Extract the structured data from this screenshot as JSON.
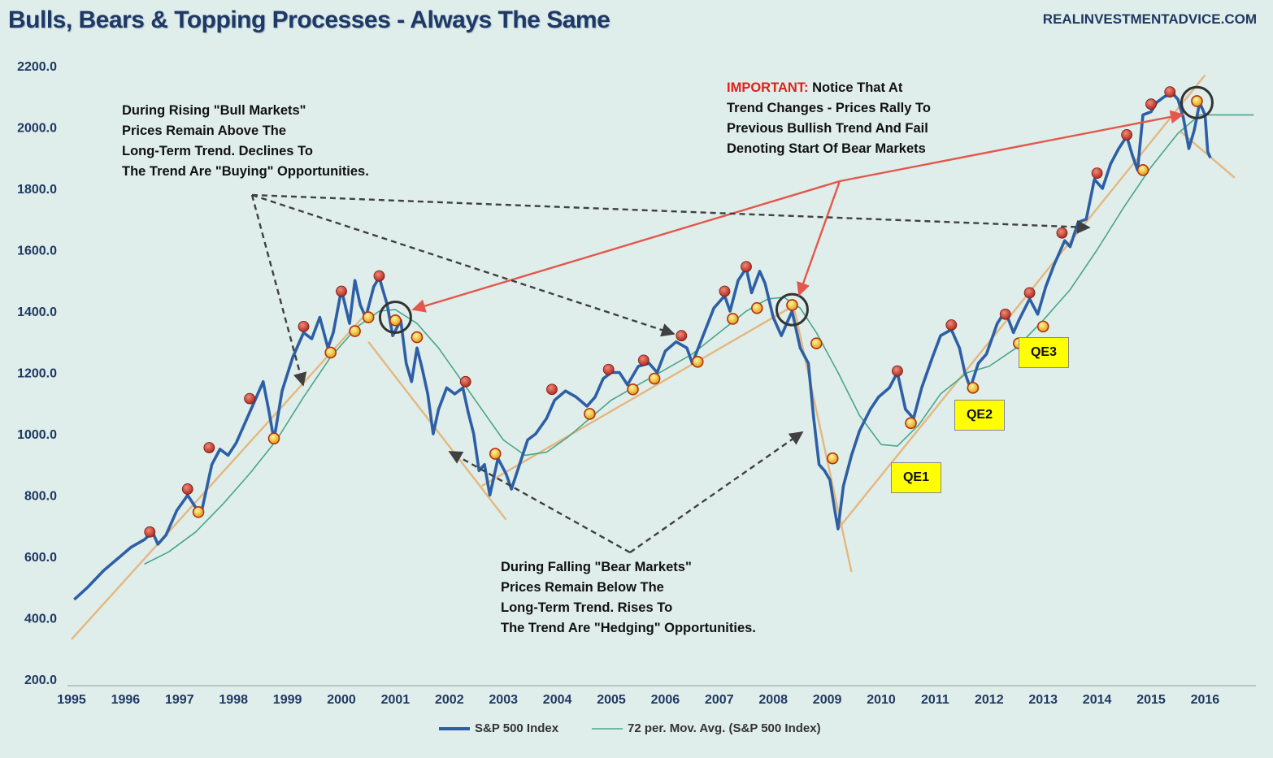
{
  "header": {
    "title": "Bulls, Bears & Topping Processes - Always The Same",
    "source": "REALINVESTMENTADVICE.COM"
  },
  "colors": {
    "price": "#2e5fa6",
    "moving_avg": "#4aa58a",
    "trendline": "#e4b780",
    "red_arrow": "#e4574c",
    "dashed_arrow": "#404040",
    "peak_marker": "#c0392b",
    "pullback_marker": "#f2c019",
    "qe_box": "#ffff00"
  },
  "annotations": {
    "bull_note": [
      "During Rising \"Bull Markets\"",
      "Prices Remain Above The",
      "Long-Term Trend. Declines To",
      "The Trend Are \"Buying\" Opportunities."
    ],
    "bear_note": [
      "During Falling \"Bear Markets\"",
      "Prices Remain Below The",
      "Long-Term Trend. Rises To",
      "The Trend Are \"Hedging\" Opportunities."
    ],
    "important_label": "IMPORTANT:",
    "important_note": [
      " Notice That At",
      "Trend Changes - Prices Rally To",
      "Previous Bullish Trend And Fail",
      "Denoting Start Of Bear Markets"
    ],
    "qe_labels": [
      "QE1",
      "QE2",
      "QE3"
    ]
  },
  "chart_data": {
    "type": "line",
    "title": "Bulls, Bears & Topping Processes - Always The Same",
    "xlabel": "",
    "ylabel": "",
    "xlim": [
      1995,
      2016.95
    ],
    "ylim": [
      200,
      2200
    ],
    "x_ticks": [
      "1995",
      "1996",
      "1997",
      "1998",
      "1999",
      "2000",
      "2001",
      "2002",
      "2003",
      "2004",
      "2005",
      "2006",
      "2007",
      "2008",
      "2009",
      "2010",
      "2011",
      "2012",
      "2013",
      "2014",
      "2015",
      "2016"
    ],
    "y_ticks": [
      "200.0",
      "400.0",
      "600.0",
      "800.0",
      "1000.0",
      "1200.0",
      "1400.0",
      "1600.0",
      "1800.0",
      "2000.0",
      "2200.0"
    ],
    "grid": false,
    "legend_position": "bottom",
    "series": [
      {
        "name": "S&P 500 Index",
        "points": [
          [
            1995.05,
            460
          ],
          [
            1995.3,
            500
          ],
          [
            1995.6,
            555
          ],
          [
            1995.9,
            600
          ],
          [
            1996.1,
            630
          ],
          [
            1996.35,
            655
          ],
          [
            1996.5,
            680
          ],
          [
            1996.6,
            640
          ],
          [
            1996.75,
            670
          ],
          [
            1996.95,
            750
          ],
          [
            1997.15,
            800
          ],
          [
            1997.3,
            760
          ],
          [
            1997.4,
            740
          ],
          [
            1997.6,
            900
          ],
          [
            1997.75,
            950
          ],
          [
            1997.9,
            930
          ],
          [
            1998.05,
            970
          ],
          [
            1998.25,
            1050
          ],
          [
            1998.4,
            1110
          ],
          [
            1998.55,
            1170
          ],
          [
            1998.65,
            1080
          ],
          [
            1998.75,
            980
          ],
          [
            1998.9,
            1140
          ],
          [
            1999.1,
            1250
          ],
          [
            1999.3,
            1330
          ],
          [
            1999.45,
            1310
          ],
          [
            1999.6,
            1380
          ],
          [
            1999.75,
            1280
          ],
          [
            1999.85,
            1330
          ],
          [
            2000.0,
            1470
          ],
          [
            2000.15,
            1360
          ],
          [
            2000.25,
            1500
          ],
          [
            2000.35,
            1420
          ],
          [
            2000.45,
            1380
          ],
          [
            2000.6,
            1480
          ],
          [
            2000.7,
            1510
          ],
          [
            2000.85,
            1420
          ],
          [
            2000.95,
            1320
          ],
          [
            2001.1,
            1370
          ],
          [
            2001.2,
            1230
          ],
          [
            2001.3,
            1170
          ],
          [
            2001.4,
            1280
          ],
          [
            2001.5,
            1210
          ],
          [
            2001.6,
            1130
          ],
          [
            2001.7,
            1000
          ],
          [
            2001.8,
            1080
          ],
          [
            2001.95,
            1150
          ],
          [
            2002.1,
            1130
          ],
          [
            2002.25,
            1150
          ],
          [
            2002.35,
            1070
          ],
          [
            2002.45,
            1000
          ],
          [
            2002.55,
            880
          ],
          [
            2002.65,
            900
          ],
          [
            2002.75,
            800
          ],
          [
            2002.9,
            920
          ],
          [
            2003.05,
            870
          ],
          [
            2003.15,
            820
          ],
          [
            2003.3,
            900
          ],
          [
            2003.45,
            980
          ],
          [
            2003.6,
            1000
          ],
          [
            2003.8,
            1050
          ],
          [
            2003.95,
            1110
          ],
          [
            2004.15,
            1140
          ],
          [
            2004.35,
            1120
          ],
          [
            2004.55,
            1090
          ],
          [
            2004.7,
            1120
          ],
          [
            2004.85,
            1180
          ],
          [
            2005.0,
            1200
          ],
          [
            2005.15,
            1200
          ],
          [
            2005.3,
            1160
          ],
          [
            2005.5,
            1220
          ],
          [
            2005.7,
            1230
          ],
          [
            2005.85,
            1200
          ],
          [
            2006.0,
            1270
          ],
          [
            2006.2,
            1300
          ],
          [
            2006.4,
            1280
          ],
          [
            2006.5,
            1230
          ],
          [
            2006.7,
            1320
          ],
          [
            2006.9,
            1410
          ],
          [
            2007.1,
            1450
          ],
          [
            2007.2,
            1400
          ],
          [
            2007.35,
            1500
          ],
          [
            2007.5,
            1540
          ],
          [
            2007.6,
            1460
          ],
          [
            2007.75,
            1530
          ],
          [
            2007.85,
            1490
          ],
          [
            2008.0,
            1380
          ],
          [
            2008.15,
            1320
          ],
          [
            2008.35,
            1400
          ],
          [
            2008.5,
            1280
          ],
          [
            2008.65,
            1230
          ],
          [
            2008.75,
            1050
          ],
          [
            2008.85,
            900
          ],
          [
            2008.95,
            880
          ],
          [
            2009.05,
            850
          ],
          [
            2009.15,
            740
          ],
          [
            2009.2,
            690
          ],
          [
            2009.3,
            830
          ],
          [
            2009.45,
            930
          ],
          [
            2009.6,
            1010
          ],
          [
            2009.8,
            1080
          ],
          [
            2009.95,
            1120
          ],
          [
            2010.15,
            1150
          ],
          [
            2010.3,
            1200
          ],
          [
            2010.45,
            1080
          ],
          [
            2010.6,
            1050
          ],
          [
            2010.75,
            1150
          ],
          [
            2010.95,
            1250
          ],
          [
            2011.1,
            1320
          ],
          [
            2011.3,
            1340
          ],
          [
            2011.45,
            1280
          ],
          [
            2011.55,
            1200
          ],
          [
            2011.65,
            1150
          ],
          [
            2011.8,
            1230
          ],
          [
            2011.95,
            1260
          ],
          [
            2012.15,
            1360
          ],
          [
            2012.3,
            1400
          ],
          [
            2012.45,
            1330
          ],
          [
            2012.55,
            1370
          ],
          [
            2012.75,
            1440
          ],
          [
            2012.9,
            1390
          ],
          [
            2013.05,
            1480
          ],
          [
            2013.2,
            1550
          ],
          [
            2013.4,
            1630
          ],
          [
            2013.5,
            1610
          ],
          [
            2013.65,
            1690
          ],
          [
            2013.8,
            1700
          ],
          [
            2013.95,
            1830
          ],
          [
            2014.1,
            1800
          ],
          [
            2014.25,
            1880
          ],
          [
            2014.4,
            1930
          ],
          [
            2014.55,
            1970
          ],
          [
            2014.65,
            1910
          ],
          [
            2014.75,
            1860
          ],
          [
            2014.85,
            2040
          ],
          [
            2015.0,
            2050
          ],
          [
            2015.1,
            2080
          ],
          [
            2015.25,
            2100
          ],
          [
            2015.4,
            2110
          ],
          [
            2015.5,
            2090
          ],
          [
            2015.6,
            2030
          ],
          [
            2015.7,
            1930
          ],
          [
            2015.8,
            1990
          ],
          [
            2015.9,
            2080
          ],
          [
            2016.0,
            2040
          ],
          [
            2016.05,
            1920
          ],
          [
            2016.1,
            1900
          ]
        ]
      },
      {
        "name": "72 per. Mov. Avg. (S&P 500 Index)",
        "points": [
          [
            1996.35,
            575
          ],
          [
            1996.8,
            615
          ],
          [
            1997.3,
            680
          ],
          [
            1997.8,
            770
          ],
          [
            1998.3,
            870
          ],
          [
            1998.8,
            980
          ],
          [
            1999.3,
            1120
          ],
          [
            1999.8,
            1250
          ],
          [
            2000.3,
            1350
          ],
          [
            2000.7,
            1400
          ],
          [
            2001.0,
            1405
          ],
          [
            2001.4,
            1360
          ],
          [
            2001.8,
            1280
          ],
          [
            2002.2,
            1180
          ],
          [
            2002.6,
            1080
          ],
          [
            2003.0,
            980
          ],
          [
            2003.4,
            930
          ],
          [
            2003.8,
            940
          ],
          [
            2004.2,
            990
          ],
          [
            2004.6,
            1050
          ],
          [
            2005.0,
            1110
          ],
          [
            2005.5,
            1160
          ],
          [
            2006.0,
            1210
          ],
          [
            2006.5,
            1260
          ],
          [
            2007.0,
            1330
          ],
          [
            2007.5,
            1400
          ],
          [
            2007.9,
            1440
          ],
          [
            2008.2,
            1445
          ],
          [
            2008.5,
            1410
          ],
          [
            2008.8,
            1330
          ],
          [
            2009.2,
            1200
          ],
          [
            2009.6,
            1060
          ],
          [
            2010.0,
            965
          ],
          [
            2010.3,
            960
          ],
          [
            2010.7,
            1030
          ],
          [
            2011.1,
            1130
          ],
          [
            2011.6,
            1200
          ],
          [
            2012.0,
            1220
          ],
          [
            2012.5,
            1280
          ],
          [
            2013.0,
            1370
          ],
          [
            2013.5,
            1470
          ],
          [
            2014.0,
            1600
          ],
          [
            2014.5,
            1740
          ],
          [
            2015.0,
            1870
          ],
          [
            2015.5,
            1980
          ],
          [
            2015.9,
            2040
          ],
          [
            2016.9,
            2040
          ]
        ]
      }
    ],
    "markers": {
      "peaks": [
        [
          1996.45,
          680
        ],
        [
          1997.15,
          820
        ],
        [
          1997.55,
          955
        ],
        [
          1998.3,
          1115
        ],
        [
          1999.3,
          1350
        ],
        [
          2000.0,
          1465
        ],
        [
          2000.7,
          1515
        ],
        [
          2002.3,
          1170
        ],
        [
          2003.9,
          1145
        ],
        [
          2004.95,
          1210
        ],
        [
          2005.6,
          1240
        ],
        [
          2006.3,
          1320
        ],
        [
          2007.1,
          1465
        ],
        [
          2007.5,
          1545
        ],
        [
          2010.3,
          1205
        ],
        [
          2011.3,
          1355
        ],
        [
          2012.3,
          1390
        ],
        [
          2012.75,
          1460
        ],
        [
          2013.35,
          1655
        ],
        [
          2014.0,
          1850
        ],
        [
          2014.55,
          1975
        ],
        [
          2015.0,
          2075
        ],
        [
          2015.35,
          2115
        ]
      ],
      "pullbacks": [
        [
          1997.35,
          745
        ],
        [
          1998.75,
          985
        ],
        [
          1999.8,
          1265
        ],
        [
          2000.25,
          1335
        ],
        [
          2000.5,
          1380
        ],
        [
          2001.0,
          1370
        ],
        [
          2001.4,
          1315
        ],
        [
          2002.85,
          935
        ],
        [
          2004.6,
          1065
        ],
        [
          2005.4,
          1145
        ],
        [
          2005.8,
          1180
        ],
        [
          2006.6,
          1235
        ],
        [
          2007.25,
          1375
        ],
        [
          2007.7,
          1410
        ],
        [
          2008.35,
          1420
        ],
        [
          2008.8,
          1295
        ],
        [
          2009.1,
          920
        ],
        [
          2010.55,
          1035
        ],
        [
          2011.7,
          1150
        ],
        [
          2012.55,
          1295
        ],
        [
          2013.0,
          1350
        ],
        [
          2014.85,
          1860
        ],
        [
          2015.85,
          2085
        ]
      ]
    }
  },
  "legend": {
    "price_label": "S&P 500 Index",
    "ma_label": "72 per. Mov. Avg. (S&P 500 Index)"
  }
}
